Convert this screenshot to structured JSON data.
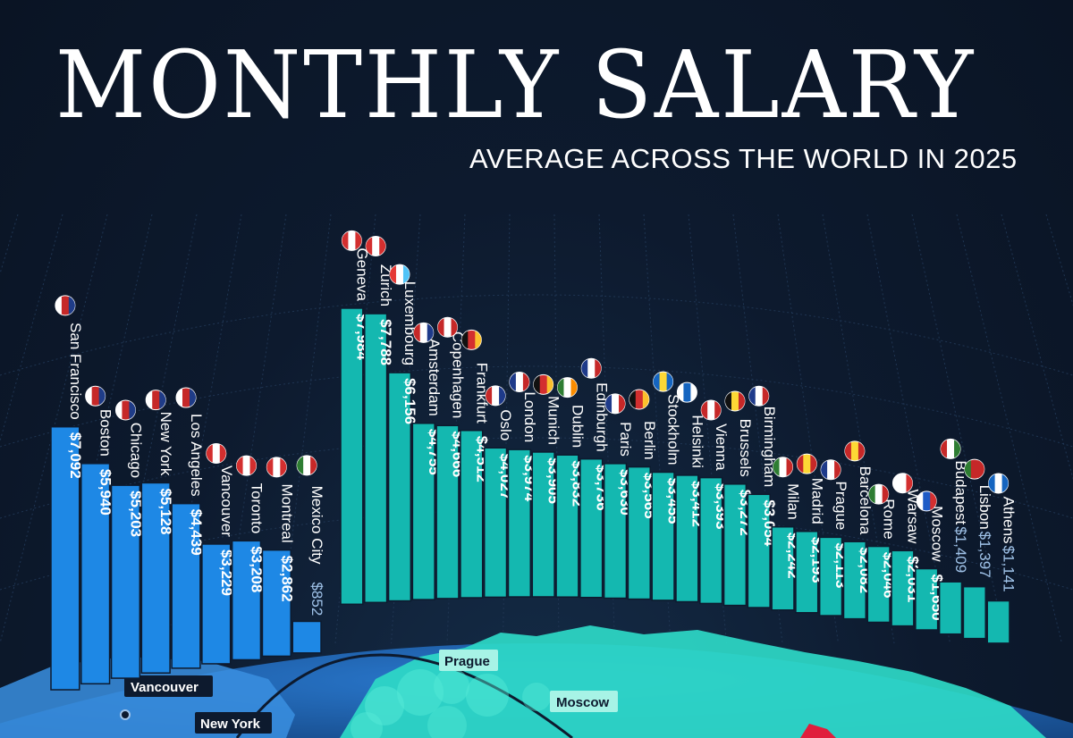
{
  "title": "MONTHLY SALARY",
  "subtitle": "AVERAGE ACROSS THE WORLD IN 2025",
  "colors": {
    "background": "#0d1a2e",
    "north_america": "#1e88e5",
    "europe": "#14b8b0",
    "globe_ocean": "#1b5fae",
    "globe_land": "#2ed9c7"
  },
  "chart_data": {
    "type": "bar",
    "categories": [
      "San Francisco",
      "Boston",
      "Chicago",
      "New York",
      "Los Angeles",
      "Vancouver",
      "Toronto",
      "Montreal",
      "Mexico City",
      "Geneva",
      "Zurich",
      "Luxembourg",
      "Amsterdam",
      "Copenhagen",
      "Frankfurt",
      "Oslo",
      "London",
      "Munich",
      "Dublin",
      "Edinburgh",
      "Paris",
      "Berlin",
      "Stockholm",
      "Helsinki",
      "Vienna",
      "Brussels",
      "Birmingham",
      "Milan",
      "Madrid",
      "Prague",
      "Barcelona",
      "Rome",
      "Warsaw",
      "Moscow",
      "Budapest",
      "Lisbon",
      "Athens"
    ],
    "values": [
      7092,
      5940,
      5203,
      5128,
      4439,
      3229,
      3208,
      2862,
      852,
      7984,
      7788,
      6156,
      4755,
      4666,
      4512,
      4027,
      3974,
      3905,
      3832,
      3736,
      3630,
      3565,
      3455,
      3412,
      3393,
      3272,
      3054,
      2242,
      2193,
      2113,
      2082,
      2046,
      2031,
      1650,
      1409,
      1397,
      1141
    ],
    "labels": [
      "$7,092",
      "$5,940",
      "$5,203",
      "$5,128",
      "$4,439",
      "$3,229",
      "$3,208",
      "$2,862",
      "$852",
      "$7,984",
      "$7,788",
      "$6,156",
      "$4,755",
      "$4,666",
      "$4,512",
      "$4,027",
      "$3,974",
      "$3,905",
      "$3,832",
      "$3,736",
      "$3,630",
      "$3,565",
      "$3,455",
      "$3,412",
      "$3,393",
      "$3,272",
      "$3,054",
      "$2,242",
      "$2,193",
      "$2,113",
      "$2,082",
      "$2,046",
      "$2,031",
      "$1,650",
      "$1,409",
      "$1,397",
      "$1,141"
    ],
    "groups": [
      "north_america",
      "north_america",
      "north_america",
      "north_america",
      "north_america",
      "north_america",
      "north_america",
      "north_america",
      "north_america",
      "europe",
      "europe",
      "europe",
      "europe",
      "europe",
      "europe",
      "europe",
      "europe",
      "europe",
      "europe",
      "europe",
      "europe",
      "europe",
      "europe",
      "europe",
      "europe",
      "europe",
      "europe",
      "europe",
      "europe",
      "europe",
      "europe",
      "europe",
      "europe",
      "europe",
      "europe",
      "europe",
      "europe"
    ],
    "flags": [
      "us-flag",
      "us-flag",
      "us-flag",
      "us-flag",
      "us-flag",
      "canada-flag",
      "canada-flag",
      "canada-flag",
      "mexico-flag",
      "switzerland-flag",
      "switzerland-flag",
      "luxembourg-flag",
      "netherlands-flag",
      "denmark-flag",
      "germany-flag",
      "norway-flag",
      "uk-flag",
      "germany-flag",
      "ireland-flag",
      "uk-flag",
      "france-flag",
      "germany-flag",
      "sweden-flag",
      "finland-flag",
      "austria-flag",
      "belgium-flag",
      "uk-flag",
      "italy-flag",
      "spain-flag",
      "czechia-flag",
      "spain-flag",
      "italy-flag",
      "poland-flag",
      "russia-flag",
      "hungary-flag",
      "portugal-flag",
      "greece-flag"
    ]
  },
  "map_labels": {
    "vancouver": "Vancouver",
    "new_york": "New York",
    "prague": "Prague",
    "moscow": "Moscow"
  }
}
